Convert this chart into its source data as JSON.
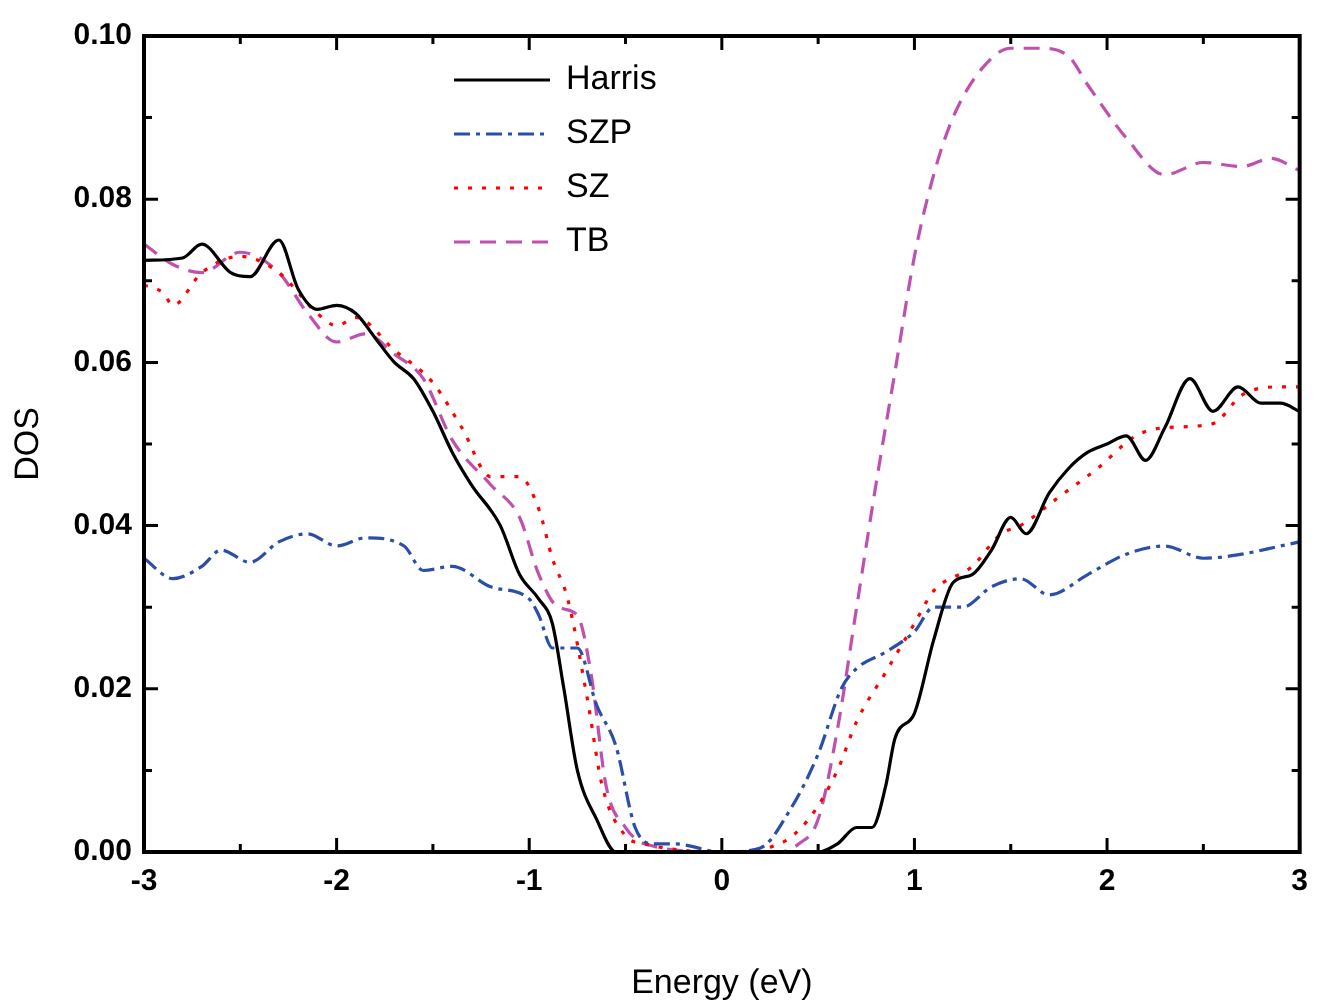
{
  "chart_data": {
    "type": "line",
    "xlabel": "Energy (eV)",
    "ylabel": "DOS",
    "xlim": [
      -3,
      3
    ],
    "ylim": [
      0,
      0.1
    ],
    "xticks": [
      -3,
      {
        "value": -2.5,
        "label": null
      },
      -2,
      {
        "value": -1.5,
        "label": null
      },
      -1,
      {
        "value": -0.5,
        "label": null
      },
      0,
      {
        "value": 0.5,
        "label": null
      },
      1,
      {
        "value": 1.5,
        "label": null
      },
      2,
      {
        "value": 2.5,
        "label": null
      },
      3
    ],
    "yticks": [
      {
        "value": 0,
        "label": "0.00"
      },
      {
        "value": 0.01,
        "label": null
      },
      {
        "value": 0.02,
        "label": "0.02"
      },
      {
        "value": 0.03,
        "label": null
      },
      {
        "value": 0.04,
        "label": "0.04"
      },
      {
        "value": 0.05,
        "label": null
      },
      {
        "value": 0.06,
        "label": "0.06"
      },
      {
        "value": 0.07,
        "label": null
      },
      {
        "value": 0.08,
        "label": "0.08"
      },
      {
        "value": 0.09,
        "label": null
      },
      {
        "value": 0.1,
        "label": "0.10"
      }
    ],
    "grid": false,
    "legend": "top left",
    "marker": "none",
    "series": [
      {
        "name": "Harris",
        "color": "#000000",
        "line_style": "solid",
        "x": [
          -3,
          -2.8,
          -2.7,
          -2.55,
          -2.45,
          -2.3,
          -2.2,
          -2.1,
          -2.0,
          -1.9,
          -1.8,
          -1.7,
          -1.6,
          -1.5,
          -1.4,
          -1.3,
          -1.15,
          -1.05,
          -0.95,
          -0.88,
          -0.82,
          -0.75,
          -0.65,
          -0.55,
          0,
          0.5,
          0.6,
          0.7,
          0.78,
          0.85,
          0.9,
          1.0,
          1.1,
          1.2,
          1.3,
          1.4,
          1.5,
          1.58,
          1.7,
          1.8,
          1.9,
          2.0,
          2.1,
          2.2,
          2.3,
          2.43,
          2.55,
          2.68,
          2.8,
          2.9,
          3.0
        ],
        "values": [
          0.0725,
          0.0728,
          0.0745,
          0.071,
          0.0705,
          0.075,
          0.069,
          0.0665,
          0.067,
          0.066,
          0.063,
          0.06,
          0.058,
          0.054,
          0.049,
          0.045,
          0.04,
          0.034,
          0.031,
          0.028,
          0.02,
          0.01,
          0.004,
          0,
          0,
          0,
          0.001,
          0.003,
          0.003,
          0.008,
          0.014,
          0.017,
          0.026,
          0.033,
          0.034,
          0.037,
          0.041,
          0.039,
          0.044,
          0.047,
          0.049,
          0.05,
          0.051,
          0.048,
          0.052,
          0.058,
          0.054,
          0.057,
          0.055,
          0.055,
          0.054
        ]
      },
      {
        "name": "SZP",
        "color": "#2b4fa8",
        "line_style": "dashdot",
        "x": [
          -3,
          -2.85,
          -2.7,
          -2.6,
          -2.45,
          -2.3,
          -2.15,
          -2.0,
          -1.85,
          -1.65,
          -1.55,
          -1.4,
          -1.2,
          -1.0,
          -0.95,
          -0.88,
          -0.75,
          -0.65,
          -0.55,
          -0.45,
          -0.35,
          -0.25,
          0,
          0.2,
          0.35,
          0.5,
          0.62,
          0.7,
          0.85,
          1.0,
          1.1,
          1.25,
          1.4,
          1.55,
          1.7,
          1.9,
          2.1,
          2.3,
          2.5,
          2.7,
          2.9,
          3.0
        ],
        "values": [
          0.036,
          0.0335,
          0.035,
          0.037,
          0.0355,
          0.038,
          0.039,
          0.0375,
          0.0385,
          0.0375,
          0.0345,
          0.035,
          0.0325,
          0.031,
          0.029,
          0.025,
          0.025,
          0.018,
          0.013,
          0.003,
          0.001,
          0.001,
          0,
          0.0005,
          0.005,
          0.012,
          0.02,
          0.0225,
          0.0245,
          0.027,
          0.03,
          0.03,
          0.0325,
          0.0335,
          0.0315,
          0.034,
          0.0365,
          0.0375,
          0.036,
          0.0365,
          0.0375,
          0.038
        ]
      },
      {
        "name": "SZ",
        "color": "#ff0000",
        "line_style": "dotted",
        "x": [
          -3,
          -2.9,
          -2.85,
          -2.7,
          -2.5,
          -2.3,
          -2.1,
          -2.0,
          -1.9,
          -1.7,
          -1.5,
          -1.35,
          -1.2,
          -1.05,
          -0.95,
          -0.88,
          -0.8,
          -0.7,
          -0.62,
          -0.5,
          -0.4,
          0,
          0.3,
          0.45,
          0.6,
          0.7,
          0.85,
          1.0,
          1.1,
          1.3,
          1.45,
          1.55,
          1.75,
          1.95,
          2.15,
          2.3,
          2.55,
          2.7,
          2.9,
          3.0
        ],
        "values": [
          0.0695,
          0.0685,
          0.067,
          0.071,
          0.073,
          0.071,
          0.066,
          0.0645,
          0.0655,
          0.0615,
          0.0575,
          0.052,
          0.046,
          0.046,
          0.042,
          0.036,
          0.031,
          0.019,
          0.008,
          0.002,
          0.001,
          0,
          0.001,
          0.004,
          0.01,
          0.016,
          0.022,
          0.028,
          0.032,
          0.035,
          0.039,
          0.04,
          0.0435,
          0.047,
          0.051,
          0.052,
          0.0525,
          0.056,
          0.057,
          0.057
        ]
      },
      {
        "name": "TB",
        "color": "#c050b0",
        "line_style": "dashed",
        "x": [
          -3,
          -2.85,
          -2.7,
          -2.5,
          -2.3,
          -2.15,
          -2.0,
          -1.85,
          -1.7,
          -1.55,
          -1.4,
          -1.2,
          -1.05,
          -0.95,
          -0.85,
          -0.75,
          -0.68,
          -0.6,
          -0.5,
          -0.4,
          0,
          0.3,
          0.4,
          0.5,
          0.6,
          0.7,
          0.8,
          0.9,
          1.0,
          1.1,
          1.2,
          1.35,
          1.5,
          1.65,
          1.8,
          1.9,
          2.1,
          2.3,
          2.5,
          2.7,
          2.85,
          3.0
        ],
        "values": [
          0.0745,
          0.072,
          0.071,
          0.0735,
          0.071,
          0.066,
          0.0625,
          0.0635,
          0.061,
          0.058,
          0.0505,
          0.045,
          0.041,
          0.034,
          0.03,
          0.029,
          0.022,
          0.008,
          0.003,
          0.001,
          0,
          0,
          0.001,
          0.004,
          0.015,
          0.03,
          0.045,
          0.059,
          0.073,
          0.083,
          0.09,
          0.096,
          0.0985,
          0.0985,
          0.0975,
          0.094,
          0.0875,
          0.083,
          0.0845,
          0.084,
          0.085,
          0.0835
        ]
      }
    ]
  }
}
